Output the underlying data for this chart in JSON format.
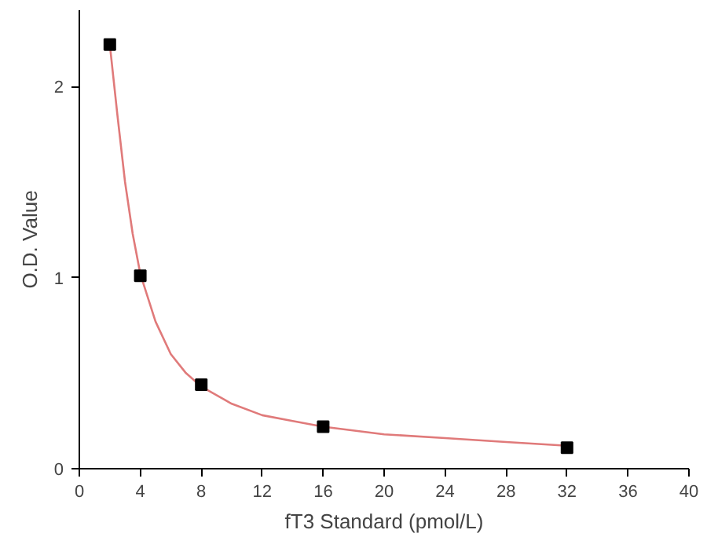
{
  "chart_data": {
    "type": "scatter",
    "xlabel": "fT3 Standard (pmol/L)",
    "ylabel": "O.D. Value",
    "xlim": [
      0,
      40
    ],
    "ylim": [
      0,
      2.4
    ],
    "xticks": [
      0,
      4,
      8,
      12,
      16,
      20,
      24,
      28,
      32,
      36,
      40
    ],
    "yticks": [
      0,
      1,
      2
    ],
    "grid": false,
    "series": [
      {
        "type": "line",
        "color": "#e07a7a",
        "marker": "none",
        "x": [
          2,
          2.5,
          3,
          3.5,
          4,
          5,
          6,
          7,
          8,
          10,
          12,
          14,
          16,
          20,
          24,
          28,
          32
        ],
        "values": [
          2.22,
          1.85,
          1.5,
          1.23,
          1.02,
          0.77,
          0.6,
          0.5,
          0.43,
          0.34,
          0.28,
          0.25,
          0.22,
          0.18,
          0.16,
          0.14,
          0.12
        ]
      },
      {
        "color": "#000000",
        "marker": "square",
        "x": [
          2,
          4,
          8,
          16,
          32
        ],
        "values": [
          2.22,
          1.01,
          0.44,
          0.22,
          0.11
        ]
      }
    ]
  }
}
